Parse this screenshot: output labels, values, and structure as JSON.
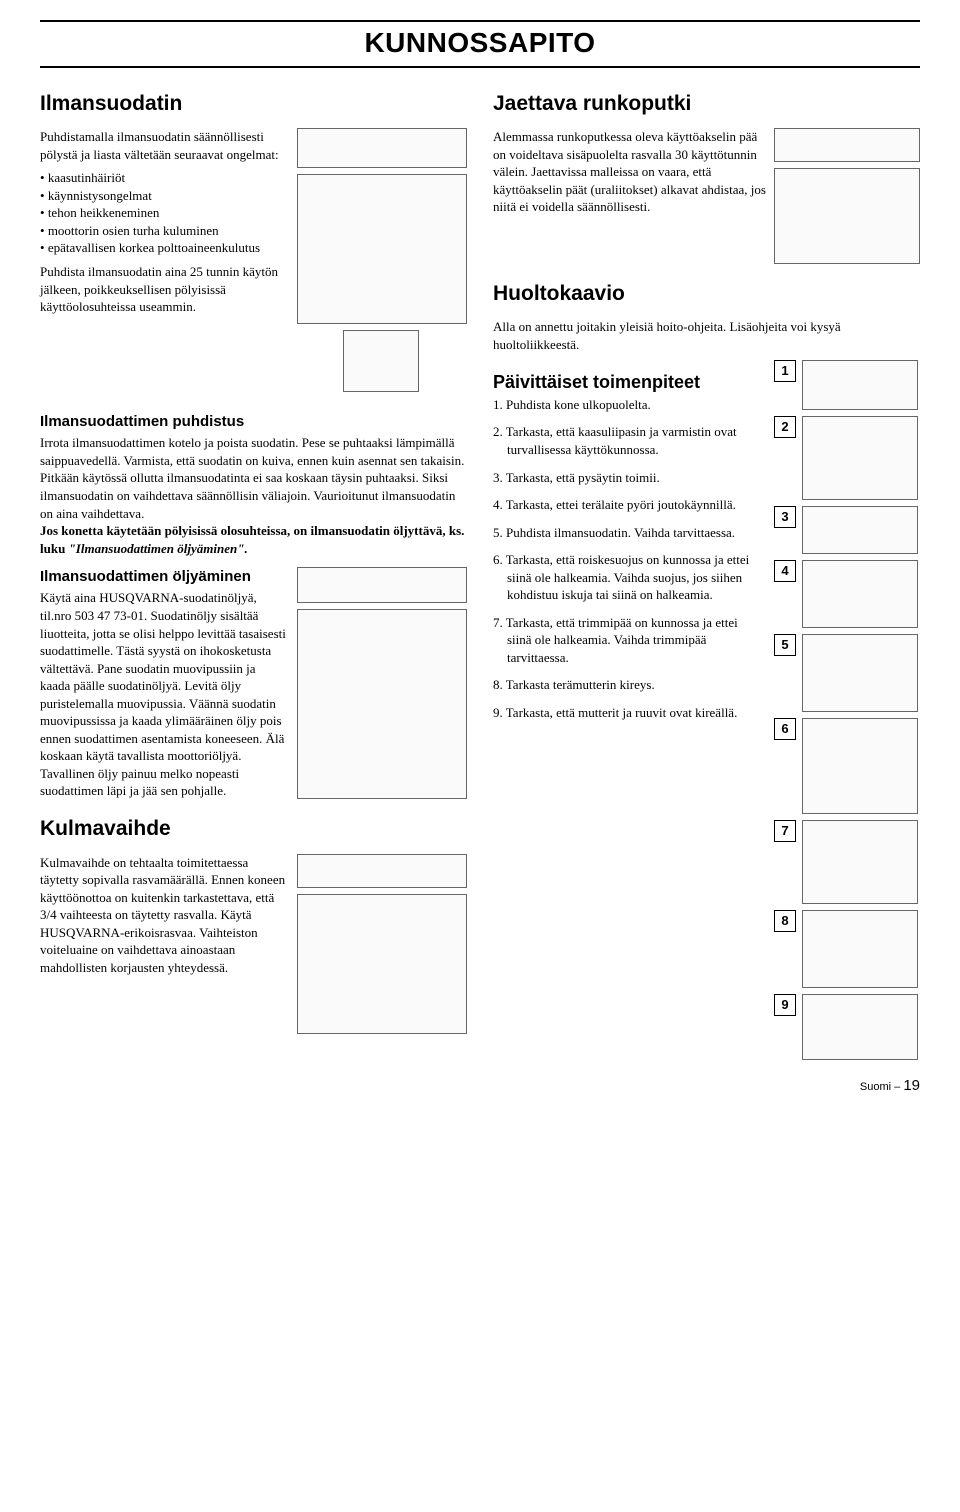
{
  "page_title": "KUNNOSSAPITO",
  "left": {
    "h_ilmansuodatin": "Ilmansuodatin",
    "intro": "Puhdistamalla ilmansuodatin säännöllisesti pölystä ja liasta vältetään seuraavat ongelmat:",
    "bullets": [
      "kaasutinhäiriöt",
      "käynnistysongelmat",
      "tehon heikkeneminen",
      "moottorin osien turha kuluminen",
      "epätavallisen korkea polttoaineenkulutus"
    ],
    "after_bullets": "Puhdista ilmansuodatin aina 25 tunnin käytön jälkeen, poikkeuksellisen pölyisissä käyttöolosuhteissa useammin.",
    "h_puhdistus": "Ilmansuodattimen puhdistus",
    "puhdistus_p1": "Irrota ilmansuodattimen kotelo ja poista suodatin. Pese se puhtaaksi lämpimällä saippuavedellä. Varmista, että suodatin on kuiva, ennen kuin asennat sen takaisin.",
    "puhdistus_p2": "Pitkään käytössä ollutta ilmansuodatinta ei saa koskaan täysin puhtaaksi. Siksi ilmansuodatin on vaihdettava säännöllisin väliajoin. Vaurioitunut ilmansuodatin on aina vaihdettava.",
    "puhdistus_bold": "Jos konetta käytetään pölyisissä olosuhteissa, on ilmansuodatin öljyttävä, ks. luku ",
    "puhdistus_italic": "\"Ilmansuodattimen öljyäminen\".",
    "h_oljy": "Ilmansuodattimen öljyäminen",
    "oljy_body": "Käytä aina HUSQVARNA-suodatinöljyä, til.nro 503 47 73-01. Suodatinöljy sisältää liuotteita, jotta se olisi helppo levittää tasaisesti suodattimelle. Tästä syystä on ihokosketusta vältettävä. Pane suodatin muovipussiin ja kaada päälle suodatinöljyä. Levitä öljy puristelemalla muovipussia. Väännä suodatin muovipussissa ja kaada ylimääräinen öljy pois ennen suodattimen asentamista koneeseen. Älä koskaan käytä tavallista moottoriöljyä. Tavallinen öljy painuu melko nopeasti suodattimen läpi ja jää sen pohjalle.",
    "h_kulma": "Kulmavaihde",
    "kulma_body": "Kulmavaihde on tehtaalta toimitettaessa täytetty sopivalla rasvamäärällä. Ennen koneen käyttöönottoa on kuitenkin tarkastettava, että 3/4 vaihteesta on täytetty rasvalla. Käytä HUSQVARNA-erikoisrasvaa. Vaihteiston voiteluaine on vaihdettava ainoastaan mahdollisten korjausten yhteydessä."
  },
  "right": {
    "h_runkoputki": "Jaettava runkoputki",
    "runko_body": "Alemmassa runkoputkessa oleva käyttöakselin pää on voideltava sisäpuolelta rasvalla 30 käyttötunnin välein. Jaettavissa malleissa on vaara, että käyttöakselin päät (uraliitokset) alkavat ahdistaa, jos niitä ei voidella säännöllisesti.",
    "h_huolto": "Huoltokaavio",
    "huolto_intro": "Alla on annettu joitakin yleisiä hoito-ohjeita. Lisäohjeita voi kysyä huoltoliikkeestä.",
    "h_paivit": "Päivittäiset toimenpiteet",
    "steps": [
      "1. Puhdista kone ulkopuolelta.",
      "2. Tarkasta, että kaasuliipasin ja varmistin ovat turvallisessa käyttökunnossa.",
      "3. Tarkasta, että pysäytin toimii.",
      "4. Tarkasta, ettei terälaite pyöri joutokäynnillä.",
      "5. Puhdista ilmansuodatin. Vaihda tarvittaessa.",
      "6. Tarkasta, että roiskesuojus on kunnossa ja ettei siinä ole halkeamia. Vaihda suojus, jos siihen kohdistuu iskuja tai siinä on halkeamia.",
      "7. Tarkasta, että trimmipää on kunnossa ja ettei siinä ole halkeamia. Vaihda trimmipää tarvittaessa.",
      "8. Tarkasta terämutterin kireys.",
      "9. Tarkasta, että mutterit ja ruuvit ovat kireällä."
    ],
    "step_fig_heights": [
      50,
      84,
      48,
      68,
      78,
      96,
      84,
      78,
      66
    ]
  },
  "footer_label": "Suomi – ",
  "footer_page": "19"
}
